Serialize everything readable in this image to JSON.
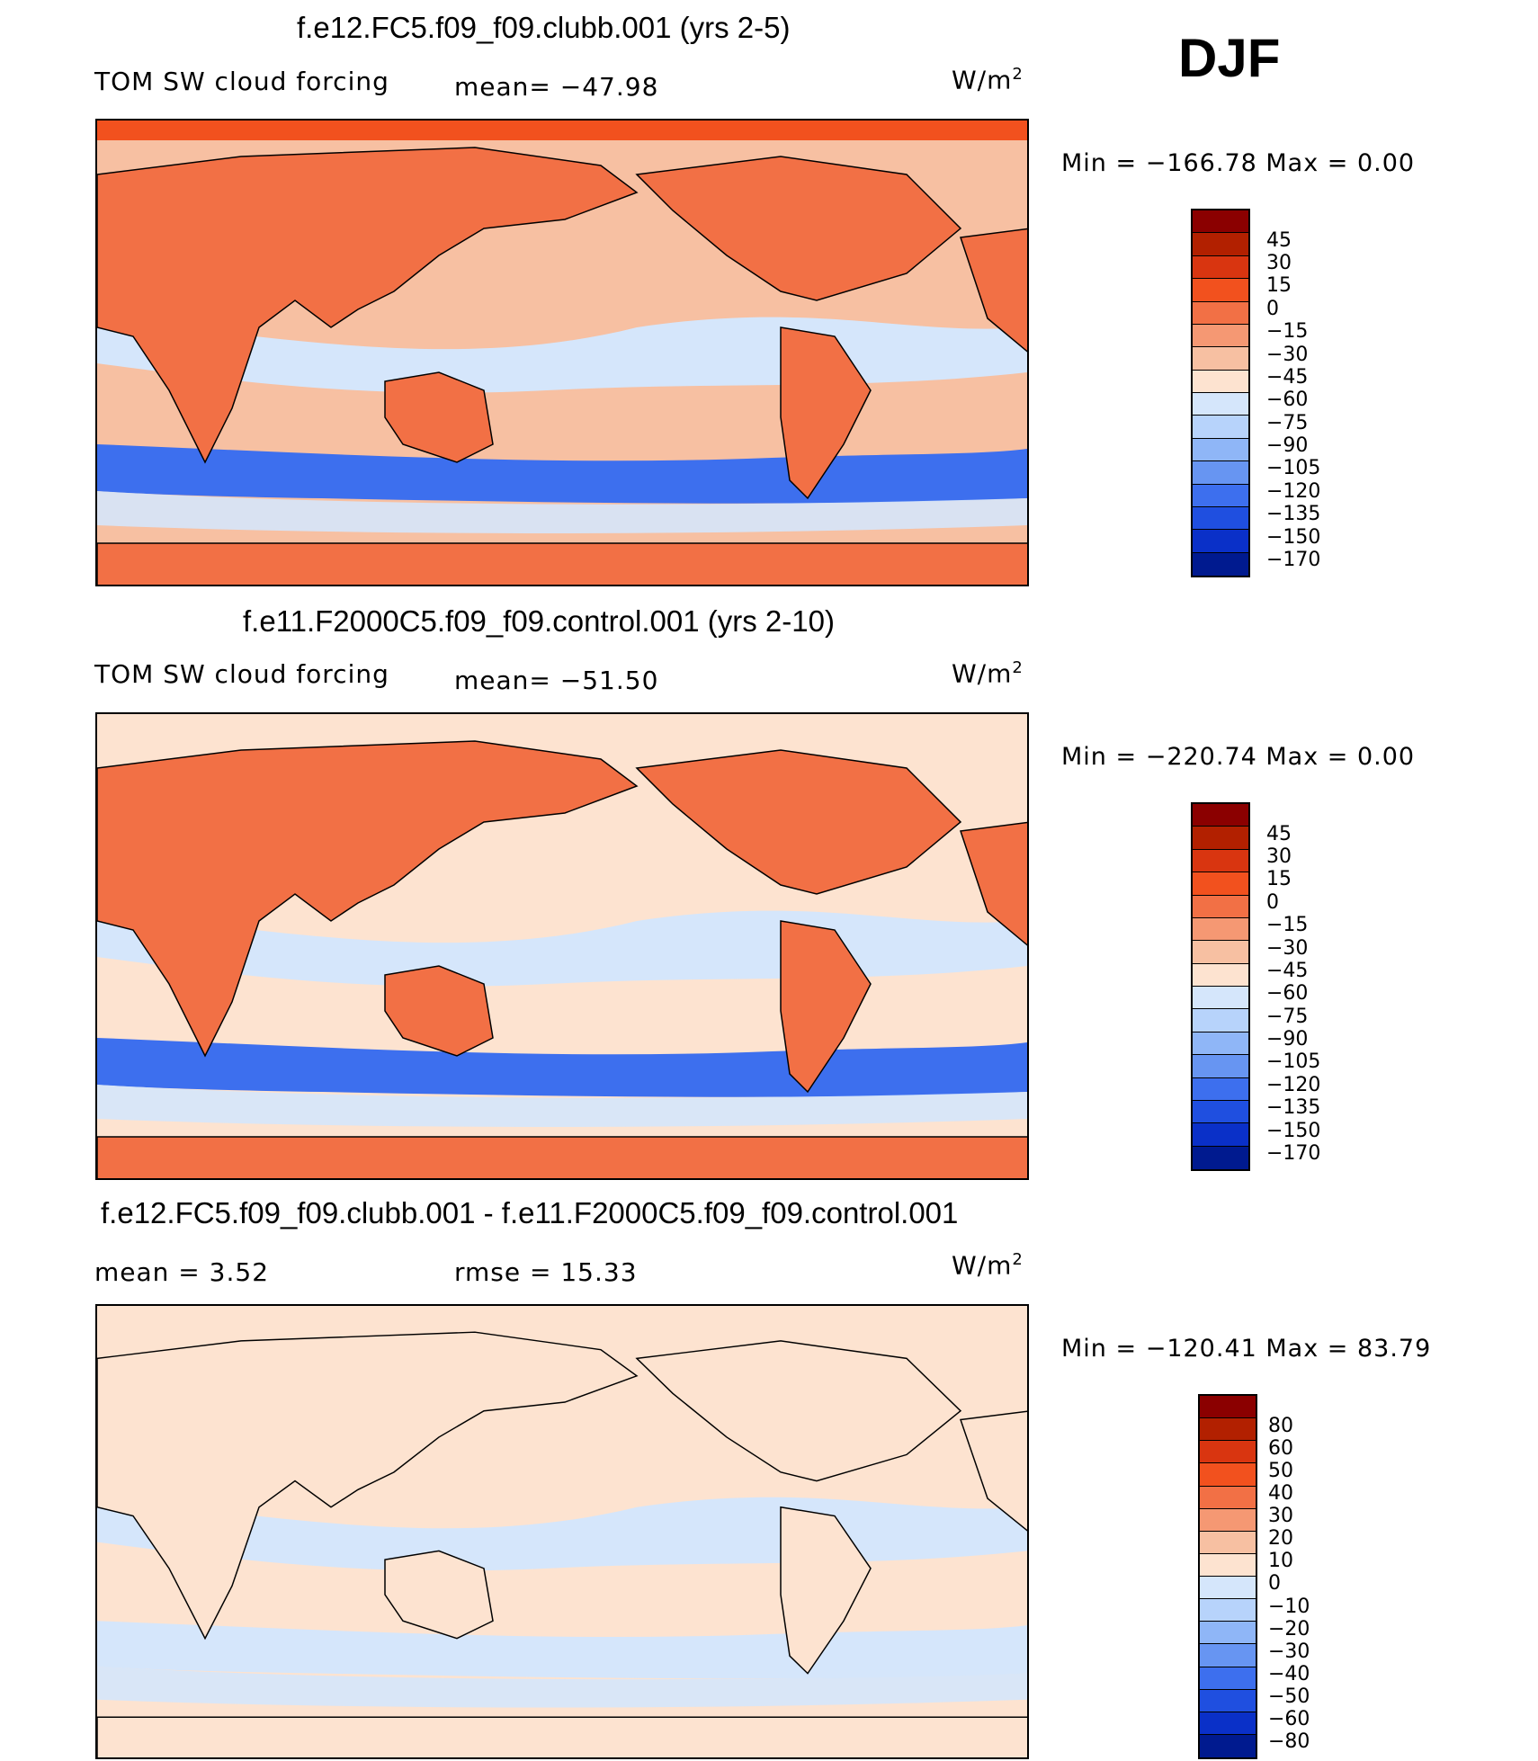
{
  "season": "DJF",
  "panels": [
    {
      "title": "f.e12.FC5.f09_f09.clubb.001 (yrs 2-5)",
      "left_label": "TOM SW cloud forcing",
      "mid_label": "mean= −47.98",
      "units": "W/m",
      "units_sup": "2",
      "minmax": "Min = −166.78 Max =     0.00",
      "colorbar": {
        "levels": [
          "45",
          "30",
          "15",
          "0",
          "−15",
          "−30",
          "−45",
          "−60",
          "−75",
          "−90",
          "−105",
          "−120",
          "−135",
          "−150",
          "−170"
        ],
        "colors": [
          "#8b0000",
          "#b22000",
          "#d93510",
          "#f2511e",
          "#f27045",
          "#f59873",
          "#f7c0a2",
          "#fde3d0",
          "#d5e6fb",
          "#b7d3fb",
          "#8fb6f7",
          "#6795f2",
          "#3d6fee",
          "#1f4fe0",
          "#0a30c8",
          "#001a8f"
        ]
      },
      "map": {
        "ocean": "#f7c0a2",
        "land": "#f27045",
        "storm": "#3d6fee",
        "tropic": "#d5e6fb",
        "pole": "#f27045"
      }
    },
    {
      "title": "f.e11.F2000C5.f09_f09.control.001 (yrs 2-10)",
      "left_label": "TOM SW cloud forcing",
      "mid_label": "mean= −51.50",
      "units": "W/m",
      "units_sup": "2",
      "minmax": "Min = −220.74 Max =     0.00",
      "colorbar": {
        "levels": [
          "45",
          "30",
          "15",
          "0",
          "−15",
          "−30",
          "−45",
          "−60",
          "−75",
          "−90",
          "−105",
          "−120",
          "−135",
          "−150",
          "−170"
        ],
        "colors": [
          "#8b0000",
          "#b22000",
          "#d93510",
          "#f2511e",
          "#f27045",
          "#f59873",
          "#f7c0a2",
          "#fde3d0",
          "#d5e6fb",
          "#b7d3fb",
          "#8fb6f7",
          "#6795f2",
          "#3d6fee",
          "#1f4fe0",
          "#0a30c8",
          "#001a8f"
        ]
      },
      "map": {
        "ocean": "#fde3d0",
        "land": "#f27045",
        "storm": "#3d6fee",
        "tropic": "#d5e6fb",
        "pole": "#f27045"
      }
    },
    {
      "title": "f.e12.FC5.f09_f09.clubb.001 - f.e11.F2000C5.f09_f09.control.001",
      "left_label": "mean =     3.52",
      "mid_label": "rmse =    15.33",
      "units": "W/m",
      "units_sup": "2",
      "minmax": "Min = −120.41 Max =   83.79",
      "colorbar": {
        "levels": [
          "80",
          "60",
          "50",
          "40",
          "30",
          "20",
          "10",
          "0",
          "−10",
          "−20",
          "−30",
          "−40",
          "−50",
          "−60",
          "−80"
        ],
        "colors": [
          "#8b0000",
          "#b22000",
          "#d93510",
          "#f2511e",
          "#f27045",
          "#f59873",
          "#f7c0a2",
          "#fde3d0",
          "#d5e6fb",
          "#b7d3fb",
          "#8fb6f7",
          "#6795f2",
          "#3d6fee",
          "#1f4fe0",
          "#0a30c8",
          "#001a8f"
        ]
      },
      "map": {
        "ocean": "#fde3d0",
        "land": "#fde3d0",
        "storm": "#d5e6fb",
        "tropic": "#d5e6fb",
        "pole": "#d5e6fb"
      }
    }
  ]
}
